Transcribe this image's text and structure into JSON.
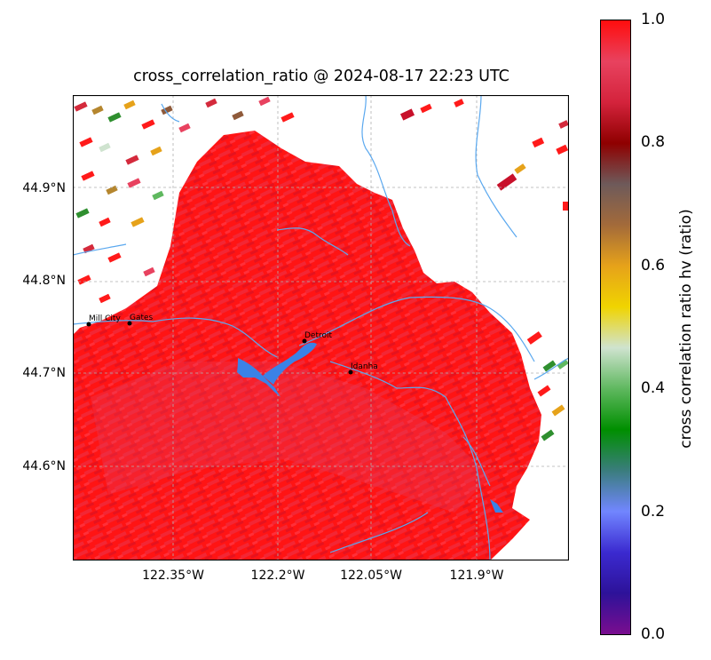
{
  "title": "cross_correlation_ratio @ 2024-08-17 22:23 UTC",
  "latitude_labels": [
    "44.9°N",
    "44.8°N",
    "44.7°N",
    "44.6°N"
  ],
  "longitude_labels": [
    "122.35°W",
    "122.2°W",
    "122.05°W",
    "121.9°W"
  ],
  "cities": [
    {
      "name": "Mill City"
    },
    {
      "name": "Gates"
    },
    {
      "name": "Detroit"
    },
    {
      "name": "Idanha"
    }
  ],
  "colorbar": {
    "label": "cross correlation ratio hv (ratio)",
    "ticks": [
      "0.0",
      "0.2",
      "0.4",
      "0.6",
      "0.8",
      "1.0"
    ],
    "colors": [
      "#7a0d8f",
      "#2d1299",
      "#3b2ad0",
      "#7186ff",
      "#3a7d7d",
      "#008f00",
      "#5fb85f",
      "#cfe3cf",
      "#f0d400",
      "#e6a21a",
      "#a36a3a",
      "#6e5a5a",
      "#8f0000",
      "#d4233c",
      "#e8425f",
      "#ff0d0d"
    ]
  },
  "colors": {
    "water": "#3b82e6",
    "river": "#5aa8ef",
    "echo_main": "#ff1a1a"
  }
}
